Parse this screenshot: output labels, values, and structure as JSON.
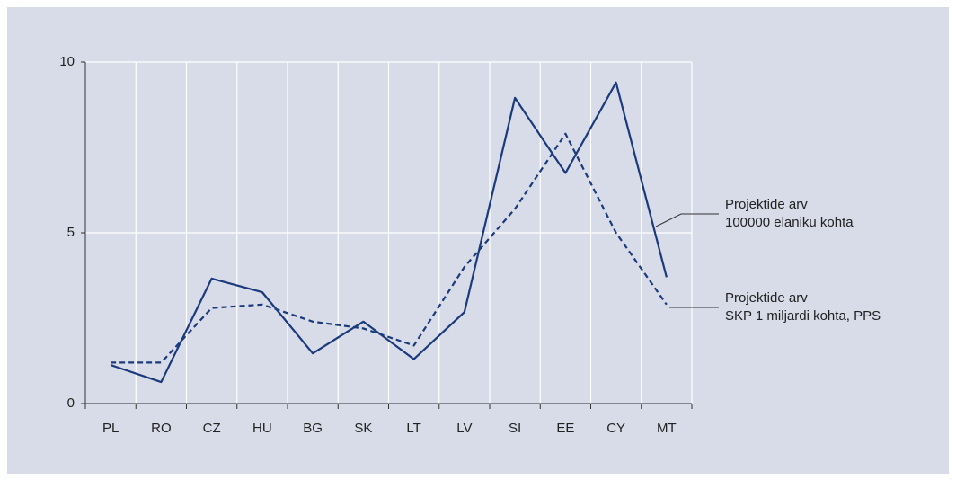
{
  "chart_data": {
    "type": "line",
    "categories": [
      "PL",
      "RO",
      "CZ",
      "HU",
      "BG",
      "SK",
      "LT",
      "LV",
      "SI",
      "EE",
      "CY",
      "MT"
    ],
    "series": [
      {
        "name": "Projektide arv\n100000 elaniku kohta",
        "color": "#1b3a7c",
        "dash": false,
        "values": [
          1.13,
          0.63,
          3.66,
          3.26,
          1.47,
          2.4,
          1.3,
          2.68,
          8.95,
          6.75,
          9.4,
          3.7
        ]
      },
      {
        "name": "Projektide arv\nSKP 1 miljardi kohta, PPS",
        "color": "#1b3a7c",
        "dash": true,
        "values": [
          1.2,
          1.2,
          2.8,
          2.9,
          2.4,
          2.2,
          1.7,
          4.0,
          5.7,
          7.9,
          5.0,
          2.9
        ]
      }
    ],
    "ylim": [
      0,
      10
    ],
    "yticks": [
      0,
      5,
      10
    ],
    "grid": true
  }
}
